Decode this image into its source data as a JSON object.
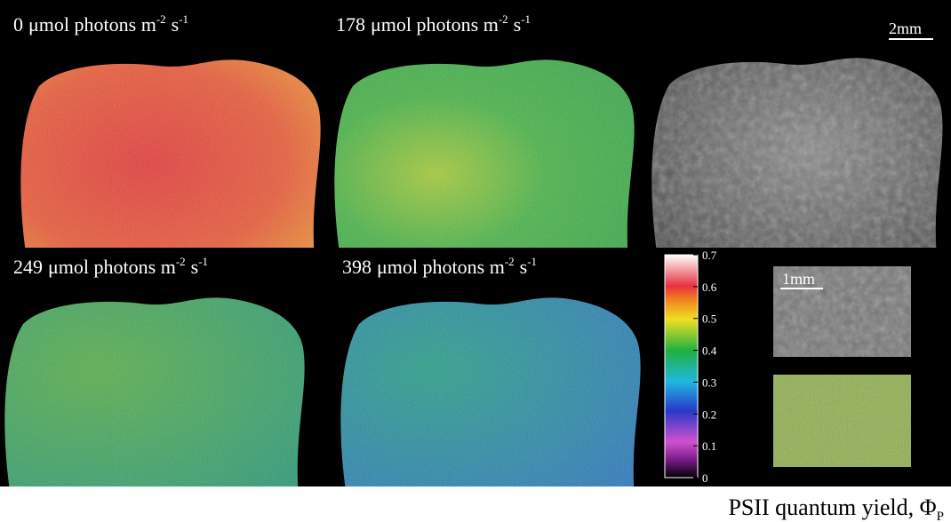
{
  "panels": [
    {
      "light": 0
    },
    {
      "light": 178
    },
    {
      "light": 249
    },
    {
      "light": 398
    }
  ],
  "unit": {
    "text": "μmol photons m",
    "exp1": "-2",
    "s": "s",
    "exp2": "-1"
  },
  "scale_bars": {
    "main": "2mm",
    "inset": "1mm"
  },
  "colorbar": {
    "title": "PSII quantum yield, Φ",
    "subscript": "P",
    "lim": [
      0,
      0.7
    ],
    "ticks": [
      0,
      0.1,
      0.2,
      0.3,
      0.4,
      0.5,
      0.6,
      0.7
    ]
  }
}
